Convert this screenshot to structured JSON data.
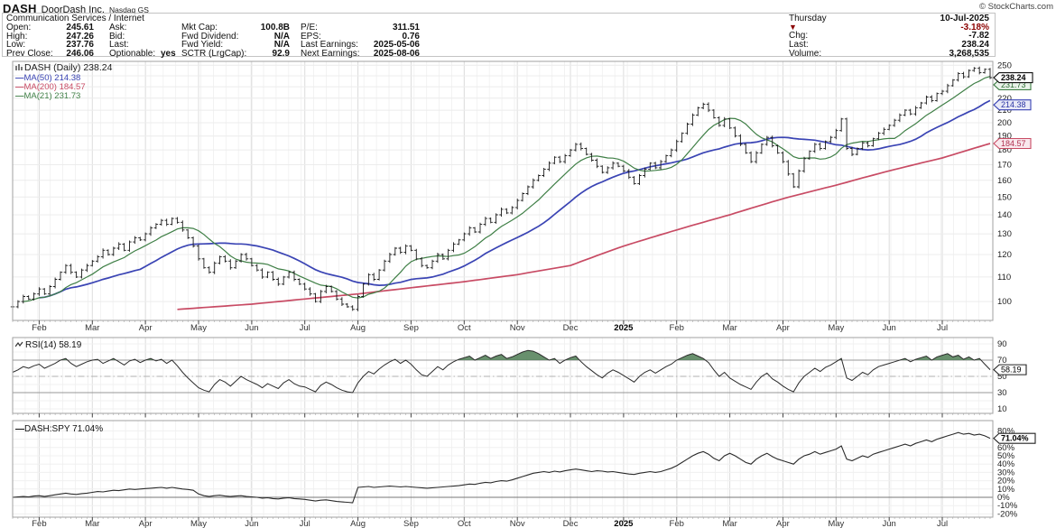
{
  "header": {
    "ticker": "DASH",
    "company": "DoorDash Inc.",
    "exchange": "Nasdaq GS",
    "copyright": "© StockCharts.com",
    "sector": "Communication Services / Internet",
    "quote_cols": [
      {
        "rows": [
          [
            "Open:",
            "245.61"
          ],
          [
            "High:",
            "247.26"
          ],
          [
            "Low:",
            "237.76"
          ],
          [
            "Prev Close:",
            "246.06"
          ]
        ]
      },
      {
        "rows": [
          [
            "Ask:",
            ""
          ],
          [
            "Bid:",
            ""
          ],
          [
            "Last:",
            ""
          ],
          [
            "Optionable:",
            "yes"
          ]
        ]
      },
      {
        "rows": [
          [
            "Mkt Cap:",
            "100.8B"
          ],
          [
            "Fwd Dividend:",
            "N/A"
          ],
          [
            "Fwd Yield:",
            "N/A"
          ],
          [
            "SCTR (LrgCap):",
            "92.9"
          ]
        ]
      },
      {
        "rows": [
          [
            "P/E:",
            "311.51"
          ],
          [
            "EPS:",
            "0.76"
          ],
          [
            "Last Earnings:",
            "2025-05-06"
          ],
          [
            "Next Earnings:",
            "2025-08-06"
          ]
        ]
      }
    ],
    "right_block": {
      "day": "Thursday",
      "date": "10-Jul-2025",
      "arrow": "▼",
      "pct_change": "-3.18%",
      "chg_label": "Chg:",
      "chg": "-7.82",
      "last_label": "Last:",
      "last": "238.24",
      "volume_label": "Volume:",
      "volume": "3,268,535"
    }
  },
  "legend": {
    "symbol_line": "DASH (Daily) 238.24",
    "ma50": "MA(50) 214.38",
    "ma200": "MA(200) 184.57",
    "ma21": "MA(21) 231.73",
    "dash": "—"
  },
  "panels": {
    "rsi_label": "RSI(14) 58.19",
    "ratio_label": "DASH:SPY 71.04%"
  },
  "bubbles": {
    "price_last": "238.24",
    "ma21": "231.73",
    "ma50": "214.38",
    "ma200": "184.57",
    "rsi_last": "58.19",
    "ratio_last": "71.04%"
  },
  "colors": {
    "ma50": "#3a44b4",
    "ma200": "#c84b64",
    "ma21": "#3f7f46",
    "bars": "#1a1a1a",
    "maroon": "#8b0000",
    "rsi_fill": "#4e7d54",
    "line": "#2b2b2b"
  },
  "chart_data": {
    "type": "ohlc-bar price chart with RSI and ratio line panels",
    "title": "DASH (Daily)",
    "x_start": "mid-Jan-2024",
    "x_end": "10-Jul-2025",
    "months": [
      "Feb",
      "Mar",
      "Apr",
      "May",
      "Jun",
      "Jul",
      "Aug",
      "Sep",
      "Oct",
      "Nov",
      "Dec",
      "2025",
      "Feb",
      "Mar",
      "Apr",
      "May",
      "Jun",
      "Jul"
    ],
    "points_per_month": 10,
    "first_month_point": 5,
    "price_panel": {
      "scale": "log",
      "ylim": [
        97,
        252
      ],
      "ticks": [
        100,
        110,
        120,
        130,
        140,
        150,
        160,
        170,
        180,
        190,
        200,
        210,
        220,
        230,
        240,
        250
      ],
      "last_close": 238.24,
      "ma21_value": 231.73,
      "ma50_value": 214.38,
      "ma200_value": 184.57,
      "close": [
        98,
        100,
        102,
        101,
        103,
        105,
        103,
        106,
        109,
        112,
        115,
        112,
        110,
        113,
        115,
        117,
        119,
        122,
        120,
        123,
        125,
        122,
        126,
        128,
        127,
        130,
        133,
        135,
        137,
        135,
        138,
        136,
        132,
        128,
        124,
        118,
        114,
        112,
        116,
        119,
        117,
        114,
        117,
        120,
        118,
        115,
        113,
        110,
        112,
        109,
        107,
        110,
        112,
        109,
        107,
        105,
        103,
        100,
        104,
        106,
        104,
        101,
        99,
        98,
        97,
        102,
        107,
        111,
        109,
        113,
        117,
        120,
        123,
        121,
        124,
        122,
        118,
        115,
        114,
        117,
        120,
        118,
        122,
        125,
        127,
        130,
        133,
        131,
        135,
        138,
        136,
        140,
        143,
        141,
        144,
        148,
        152,
        156,
        160,
        163,
        167,
        171,
        175,
        172,
        176,
        180,
        184,
        181,
        177,
        173,
        169,
        165,
        168,
        171,
        169,
        166,
        162,
        158,
        163,
        167,
        171,
        168,
        172,
        176,
        180,
        186,
        192,
        199,
        206,
        212,
        215,
        210,
        204,
        198,
        203,
        196,
        190,
        184,
        178,
        172,
        178,
        184,
        189,
        183,
        178,
        172,
        164,
        156,
        166,
        174,
        179,
        184,
        181,
        186,
        189,
        194,
        203,
        181,
        177,
        181,
        185,
        183,
        188,
        192,
        195,
        198,
        202,
        206,
        210,
        207,
        212,
        216,
        221,
        218,
        224,
        226,
        231,
        236,
        242,
        239,
        245,
        247,
        243,
        246.06,
        238.24
      ],
      "ma200_waypoints": [
        [
          31,
          97
        ],
        [
          45,
          99
        ],
        [
          55,
          101
        ],
        [
          65,
          103
        ],
        [
          75,
          105.5
        ],
        [
          85,
          108
        ],
        [
          95,
          111
        ],
        [
          105,
          115
        ],
        [
          115,
          124
        ],
        [
          125,
          132
        ],
        [
          135,
          140
        ],
        [
          145,
          149
        ],
        [
          155,
          157
        ],
        [
          165,
          166
        ],
        [
          175,
          174.5
        ],
        [
          184,
          184.57
        ]
      ]
    },
    "rsi_panel": {
      "label": "RSI(14)",
      "last": 58.19,
      "overbought": 70,
      "oversold": 30,
      "midline": 50,
      "ticks": [
        90,
        70,
        50,
        30,
        10
      ],
      "values": [
        55,
        58,
        62,
        60,
        63,
        65,
        60,
        63,
        66,
        70,
        72,
        66,
        62,
        65,
        68,
        70,
        71,
        66,
        69,
        72,
        68,
        64,
        69,
        71,
        67,
        70,
        72,
        69,
        71,
        66,
        70,
        63,
        55,
        48,
        42,
        36,
        33,
        31,
        40,
        46,
        43,
        38,
        44,
        50,
        46,
        43,
        40,
        36,
        41,
        38,
        35,
        42,
        46,
        41,
        38,
        37,
        34,
        31,
        39,
        43,
        40,
        36,
        33,
        31,
        30,
        42,
        50,
        56,
        53,
        59,
        64,
        68,
        71,
        66,
        70,
        65,
        58,
        52,
        50,
        56,
        62,
        58,
        64,
        68,
        71,
        73,
        75,
        70,
        73,
        76,
        72,
        75,
        77,
        72,
        74,
        77,
        80,
        82,
        81,
        78,
        74,
        70,
        72,
        66,
        70,
        73,
        75,
        68,
        62,
        57,
        52,
        48,
        54,
        58,
        55,
        51,
        47,
        43,
        50,
        55,
        58,
        54,
        58,
        62,
        65,
        70,
        73,
        76,
        78,
        75,
        72,
        67,
        58,
        50,
        55,
        48,
        44,
        40,
        37,
        34,
        43,
        50,
        54,
        47,
        43,
        38,
        34,
        31,
        42,
        50,
        55,
        60,
        56,
        61,
        64,
        68,
        72,
        48,
        45,
        50,
        55,
        52,
        58,
        62,
        64,
        66,
        68,
        70,
        72,
        68,
        71,
        73,
        75,
        70,
        74,
        76,
        78,
        74,
        76,
        71,
        74,
        70,
        72,
        65,
        58.19
      ]
    },
    "ratio_panel": {
      "label": "DASH:SPY",
      "last_pct": 71.04,
      "ticks_pct": [
        80,
        70,
        60,
        50,
        40,
        30,
        20,
        10,
        0,
        -10,
        -20
      ],
      "values_pct": [
        0,
        0.5,
        1,
        0.5,
        1.5,
        2,
        1,
        2,
        3,
        4,
        5,
        4,
        3.5,
        4.5,
        5,
        6,
        7,
        6.5,
        7.5,
        8.5,
        8,
        9,
        10,
        9.5,
        10,
        10.5,
        11,
        11.5,
        12,
        11,
        12,
        11,
        10,
        9.5,
        8.5,
        4,
        2,
        1,
        2,
        2.5,
        1.5,
        1,
        1.5,
        2,
        1,
        0.5,
        0,
        -1,
        -0.5,
        -1.5,
        -2,
        -1,
        -0.5,
        -1.5,
        -2,
        -2.5,
        -3.5,
        -4.5,
        -3.5,
        -3,
        -4,
        -5,
        -5.5,
        -6,
        -6.5,
        12,
        12.5,
        13,
        12,
        12.5,
        13,
        13.5,
        13,
        12.5,
        13,
        12.5,
        12,
        11.5,
        11,
        11.5,
        12,
        12.5,
        13,
        13.5,
        14,
        15,
        16,
        15.5,
        17,
        18,
        17.5,
        19,
        20,
        19.5,
        21,
        23,
        25,
        27,
        29,
        30,
        31,
        30,
        31.5,
        30.5,
        32,
        33,
        34,
        33,
        32,
        31,
        32,
        31.5,
        30.5,
        31,
        30,
        29,
        28,
        27.5,
        29,
        30,
        31,
        30,
        31,
        33,
        35,
        38,
        42,
        46,
        50,
        53,
        55,
        52,
        47,
        44,
        50,
        53,
        50,
        46,
        42,
        40,
        46,
        50,
        53,
        49,
        46,
        44,
        42,
        40,
        46,
        50,
        52,
        55,
        52,
        54,
        56,
        58,
        62,
        46,
        44,
        47,
        50,
        48,
        52,
        54,
        56,
        58,
        60,
        62,
        64,
        62,
        65,
        67,
        69,
        67,
        70,
        72,
        74,
        76,
        78,
        76,
        77,
        75,
        76,
        74,
        71.04
      ]
    }
  }
}
